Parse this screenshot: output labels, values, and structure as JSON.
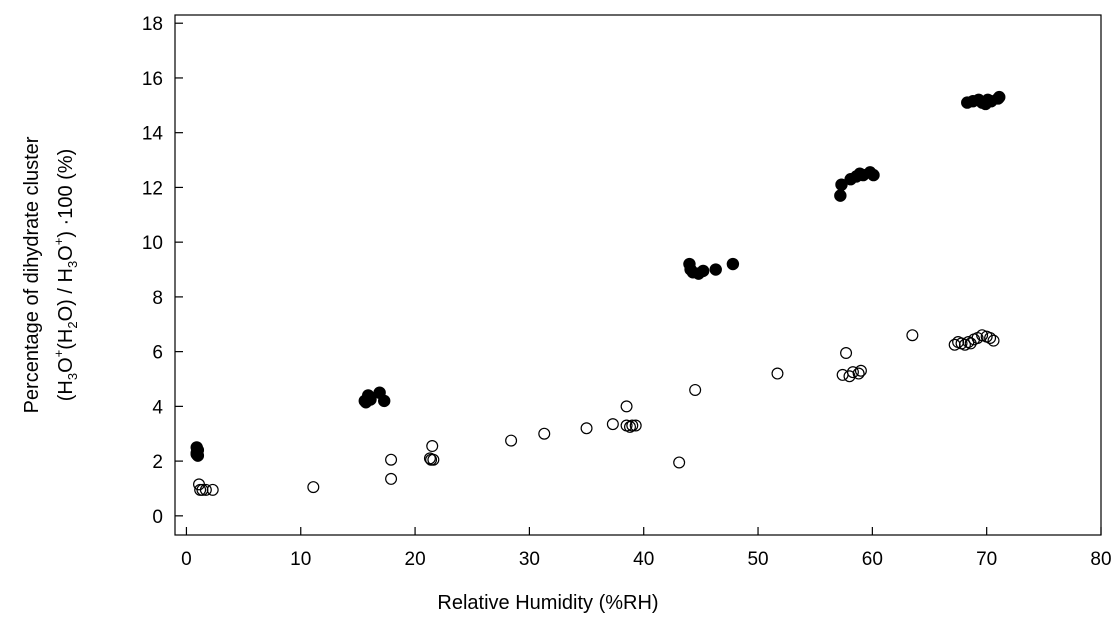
{
  "chart_data": {
    "type": "scatter",
    "title": "",
    "xlabel": "Relative Humidity (%RH)",
    "ylabel_line1": "Percentage of dihydrate cluster",
    "ylabel_line2": {
      "a": "(H",
      "a_sub": "3",
      "b": "O",
      "b_sup": "+",
      "c": "(H",
      "c_sub": "2",
      "d": "O)  / H",
      "d_sub": "3",
      "e": "O",
      "e_sup": "+",
      "f": ") ·100 (%)"
    },
    "xlim": [
      -1,
      80
    ],
    "ylim": [
      -0.7,
      18.3
    ],
    "xticks": [
      0,
      10,
      20,
      30,
      40,
      50,
      60,
      70,
      80
    ],
    "yticks": [
      0,
      2,
      4,
      6,
      8,
      10,
      12,
      14,
      16,
      18
    ],
    "grid": false,
    "series": [
      {
        "marker": "filled-circle",
        "color": "#000000",
        "points": [
          [
            0.9,
            2.5
          ],
          [
            1.0,
            2.4
          ],
          [
            0.9,
            2.3
          ],
          [
            1.0,
            2.2
          ],
          [
            0.9,
            2.25
          ],
          [
            15.6,
            4.2
          ],
          [
            15.9,
            4.4
          ],
          [
            16.1,
            4.25
          ],
          [
            15.7,
            4.15
          ],
          [
            16.9,
            4.5
          ],
          [
            17.3,
            4.2
          ],
          [
            44.0,
            9.2
          ],
          [
            44.1,
            9.0
          ],
          [
            44.3,
            8.9
          ],
          [
            44.8,
            8.85
          ],
          [
            45.2,
            8.95
          ],
          [
            46.3,
            9.0
          ],
          [
            47.8,
            9.2
          ],
          [
            57.2,
            11.7
          ],
          [
            57.3,
            12.1
          ],
          [
            58.1,
            12.3
          ],
          [
            58.6,
            12.4
          ],
          [
            58.9,
            12.5
          ],
          [
            59.2,
            12.45
          ],
          [
            59.8,
            12.55
          ],
          [
            60.1,
            12.45
          ],
          [
            68.3,
            15.1
          ],
          [
            68.8,
            15.15
          ],
          [
            69.3,
            15.2
          ],
          [
            69.6,
            15.1
          ],
          [
            69.9,
            15.05
          ],
          [
            70.1,
            15.2
          ],
          [
            70.4,
            15.15
          ],
          [
            71.0,
            15.25
          ],
          [
            71.1,
            15.3
          ]
        ]
      },
      {
        "marker": "open-circle",
        "color": "#000000",
        "points": [
          [
            1.1,
            1.15
          ],
          [
            1.2,
            0.95
          ],
          [
            1.4,
            0.95
          ],
          [
            1.7,
            0.95
          ],
          [
            2.3,
            0.95
          ],
          [
            11.1,
            1.05
          ],
          [
            17.9,
            2.05
          ],
          [
            17.9,
            1.35
          ],
          [
            21.3,
            2.1
          ],
          [
            21.4,
            2.05
          ],
          [
            21.6,
            2.05
          ],
          [
            21.5,
            2.55
          ],
          [
            28.4,
            2.75
          ],
          [
            31.3,
            3.0
          ],
          [
            35.0,
            3.2
          ],
          [
            37.3,
            3.35
          ],
          [
            38.5,
            4.0
          ],
          [
            38.5,
            3.3
          ],
          [
            38.8,
            3.25
          ],
          [
            39.0,
            3.3
          ],
          [
            39.3,
            3.3
          ],
          [
            43.1,
            1.95
          ],
          [
            44.5,
            4.6
          ],
          [
            51.7,
            5.2
          ],
          [
            57.4,
            5.15
          ],
          [
            57.7,
            5.95
          ],
          [
            58.0,
            5.1
          ],
          [
            58.3,
            5.25
          ],
          [
            58.8,
            5.2
          ],
          [
            59.0,
            5.3
          ],
          [
            63.5,
            6.6
          ],
          [
            67.2,
            6.25
          ],
          [
            67.5,
            6.35
          ],
          [
            67.8,
            6.3
          ],
          [
            68.1,
            6.25
          ],
          [
            68.4,
            6.35
          ],
          [
            68.6,
            6.3
          ],
          [
            68.9,
            6.45
          ],
          [
            69.2,
            6.5
          ],
          [
            69.6,
            6.6
          ],
          [
            70.0,
            6.55
          ],
          [
            70.3,
            6.5
          ],
          [
            70.6,
            6.4
          ]
        ]
      }
    ]
  }
}
